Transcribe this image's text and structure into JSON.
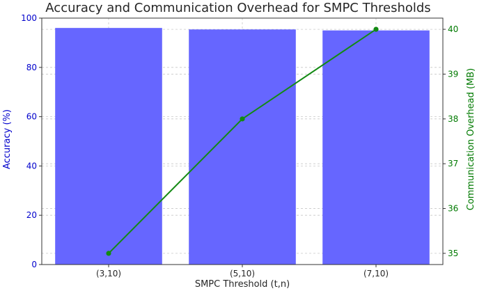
{
  "chart_data": {
    "type": "bar+line",
    "title": "Accuracy and Communication Overhead for SMPC Thresholds",
    "xlabel": "SMPC Threshold (t,n)",
    "categories": [
      "(3,10)",
      "(5,10)",
      "(7,10)"
    ],
    "left_axis": {
      "label": "Accuracy (%)",
      "ylim": [
        0,
        100
      ],
      "ticks": [
        "0",
        "20",
        "40",
        "60",
        "80",
        "100"
      ],
      "color": "#0000cc"
    },
    "right_axis": {
      "label": "Communication Overhead (MB)",
      "ylim": [
        34.75,
        40.25
      ],
      "ticks": [
        "35",
        "36",
        "37",
        "38",
        "39",
        "40"
      ],
      "color": "#007a00"
    },
    "series": [
      {
        "type": "bar",
        "axis": "left",
        "values": [
          96.0,
          95.4,
          95.0
        ],
        "color": "#6666ff"
      },
      {
        "type": "line",
        "axis": "right",
        "values": [
          35,
          38,
          40
        ],
        "color": "#138a13"
      }
    ],
    "grid": true
  }
}
